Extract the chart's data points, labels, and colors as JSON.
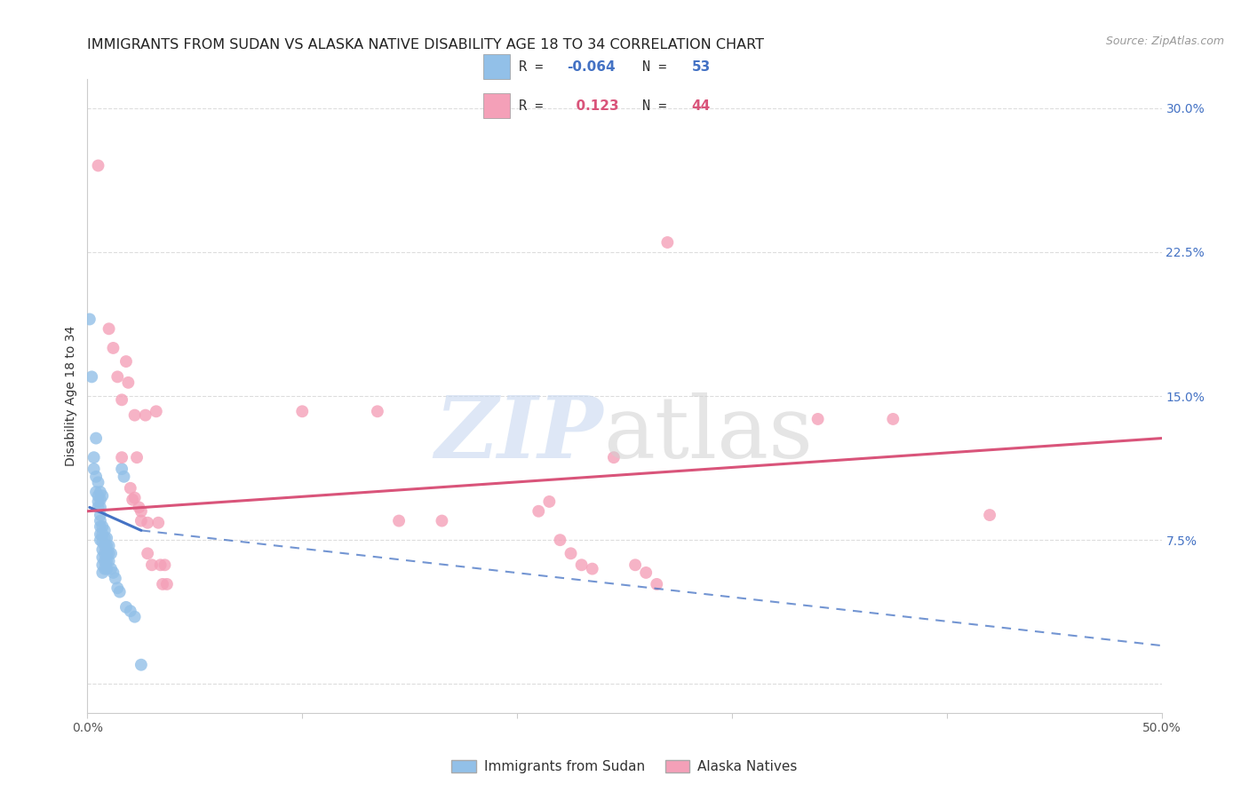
{
  "title": "IMMIGRANTS FROM SUDAN VS ALASKA NATIVE DISABILITY AGE 18 TO 34 CORRELATION CHART",
  "source": "Source: ZipAtlas.com",
  "ylabel": "Disability Age 18 to 34",
  "xlim": [
    0.0,
    0.5
  ],
  "ylim": [
    -0.015,
    0.315
  ],
  "ytick_vals": [
    0.0,
    0.075,
    0.15,
    0.225,
    0.3
  ],
  "ytick_labels": [
    "",
    "7.5%",
    "15.0%",
    "22.5%",
    "30.0%"
  ],
  "xtick_vals": [
    0.0,
    0.1,
    0.2,
    0.3,
    0.4,
    0.5
  ],
  "xtick_labels": [
    "0.0%",
    "",
    "",
    "",
    "",
    "50.0%"
  ],
  "blue_R": -0.064,
  "blue_N": 53,
  "pink_R": 0.123,
  "pink_N": 44,
  "legend_label_blue": "Immigrants from Sudan",
  "legend_label_pink": "Alaska Natives",
  "blue_color": "#92c0e8",
  "pink_color": "#f4a0b8",
  "blue_line_color": "#4472c4",
  "pink_line_color": "#d9547a",
  "blue_scatter": [
    [
      0.001,
      0.19
    ],
    [
      0.002,
      0.16
    ],
    [
      0.003,
      0.118
    ],
    [
      0.003,
      0.112
    ],
    [
      0.004,
      0.108
    ],
    [
      0.004,
      0.128
    ],
    [
      0.004,
      0.1
    ],
    [
      0.005,
      0.098
    ],
    [
      0.005,
      0.095
    ],
    [
      0.005,
      0.092
    ],
    [
      0.005,
      0.105
    ],
    [
      0.006,
      0.1
    ],
    [
      0.006,
      0.096
    ],
    [
      0.006,
      0.092
    ],
    [
      0.006,
      0.088
    ],
    [
      0.006,
      0.085
    ],
    [
      0.006,
      0.082
    ],
    [
      0.006,
      0.078
    ],
    [
      0.006,
      0.075
    ],
    [
      0.007,
      0.098
    ],
    [
      0.007,
      0.082
    ],
    [
      0.007,
      0.078
    ],
    [
      0.007,
      0.074
    ],
    [
      0.007,
      0.07
    ],
    [
      0.007,
      0.066
    ],
    [
      0.007,
      0.062
    ],
    [
      0.007,
      0.058
    ],
    [
      0.008,
      0.08
    ],
    [
      0.008,
      0.076
    ],
    [
      0.008,
      0.072
    ],
    [
      0.008,
      0.068
    ],
    [
      0.008,
      0.064
    ],
    [
      0.008,
      0.06
    ],
    [
      0.009,
      0.076
    ],
    [
      0.009,
      0.072
    ],
    [
      0.009,
      0.068
    ],
    [
      0.009,
      0.064
    ],
    [
      0.009,
      0.06
    ],
    [
      0.01,
      0.072
    ],
    [
      0.01,
      0.068
    ],
    [
      0.01,
      0.064
    ],
    [
      0.011,
      0.068
    ],
    [
      0.011,
      0.06
    ],
    [
      0.012,
      0.058
    ],
    [
      0.013,
      0.055
    ],
    [
      0.014,
      0.05
    ],
    [
      0.015,
      0.048
    ],
    [
      0.016,
      0.112
    ],
    [
      0.017,
      0.108
    ],
    [
      0.018,
      0.04
    ],
    [
      0.02,
      0.038
    ],
    [
      0.022,
      0.035
    ],
    [
      0.025,
      0.01
    ]
  ],
  "pink_scatter": [
    [
      0.005,
      0.27
    ],
    [
      0.01,
      0.185
    ],
    [
      0.012,
      0.175
    ],
    [
      0.014,
      0.16
    ],
    [
      0.016,
      0.148
    ],
    [
      0.016,
      0.118
    ],
    [
      0.018,
      0.168
    ],
    [
      0.019,
      0.157
    ],
    [
      0.02,
      0.102
    ],
    [
      0.021,
      0.096
    ],
    [
      0.022,
      0.14
    ],
    [
      0.022,
      0.097
    ],
    [
      0.023,
      0.118
    ],
    [
      0.024,
      0.092
    ],
    [
      0.025,
      0.09
    ],
    [
      0.025,
      0.085
    ],
    [
      0.027,
      0.14
    ],
    [
      0.028,
      0.084
    ],
    [
      0.028,
      0.068
    ],
    [
      0.03,
      0.062
    ],
    [
      0.032,
      0.142
    ],
    [
      0.033,
      0.084
    ],
    [
      0.034,
      0.062
    ],
    [
      0.035,
      0.052
    ],
    [
      0.036,
      0.062
    ],
    [
      0.037,
      0.052
    ],
    [
      0.1,
      0.142
    ],
    [
      0.135,
      0.142
    ],
    [
      0.145,
      0.085
    ],
    [
      0.165,
      0.085
    ],
    [
      0.21,
      0.09
    ],
    [
      0.215,
      0.095
    ],
    [
      0.22,
      0.075
    ],
    [
      0.225,
      0.068
    ],
    [
      0.23,
      0.062
    ],
    [
      0.235,
      0.06
    ],
    [
      0.245,
      0.118
    ],
    [
      0.255,
      0.062
    ],
    [
      0.26,
      0.058
    ],
    [
      0.265,
      0.052
    ],
    [
      0.27,
      0.23
    ],
    [
      0.34,
      0.138
    ],
    [
      0.375,
      0.138
    ],
    [
      0.42,
      0.088
    ]
  ],
  "background_color": "#ffffff",
  "grid_color": "#dddddd",
  "title_fontsize": 11.5,
  "axis_label_fontsize": 10,
  "tick_fontsize": 10,
  "tick_color_y": "#4472c4",
  "blue_line_start": 0.001,
  "blue_line_solid_end": 0.025,
  "blue_line_dash_end": 0.5,
  "pink_line_start": 0.0,
  "pink_line_end": 0.5,
  "blue_line_y_start": 0.092,
  "blue_line_y_solid_end": 0.08,
  "blue_line_y_dash_end": 0.02,
  "pink_line_y_start": 0.09,
  "pink_line_y_end": 0.128
}
